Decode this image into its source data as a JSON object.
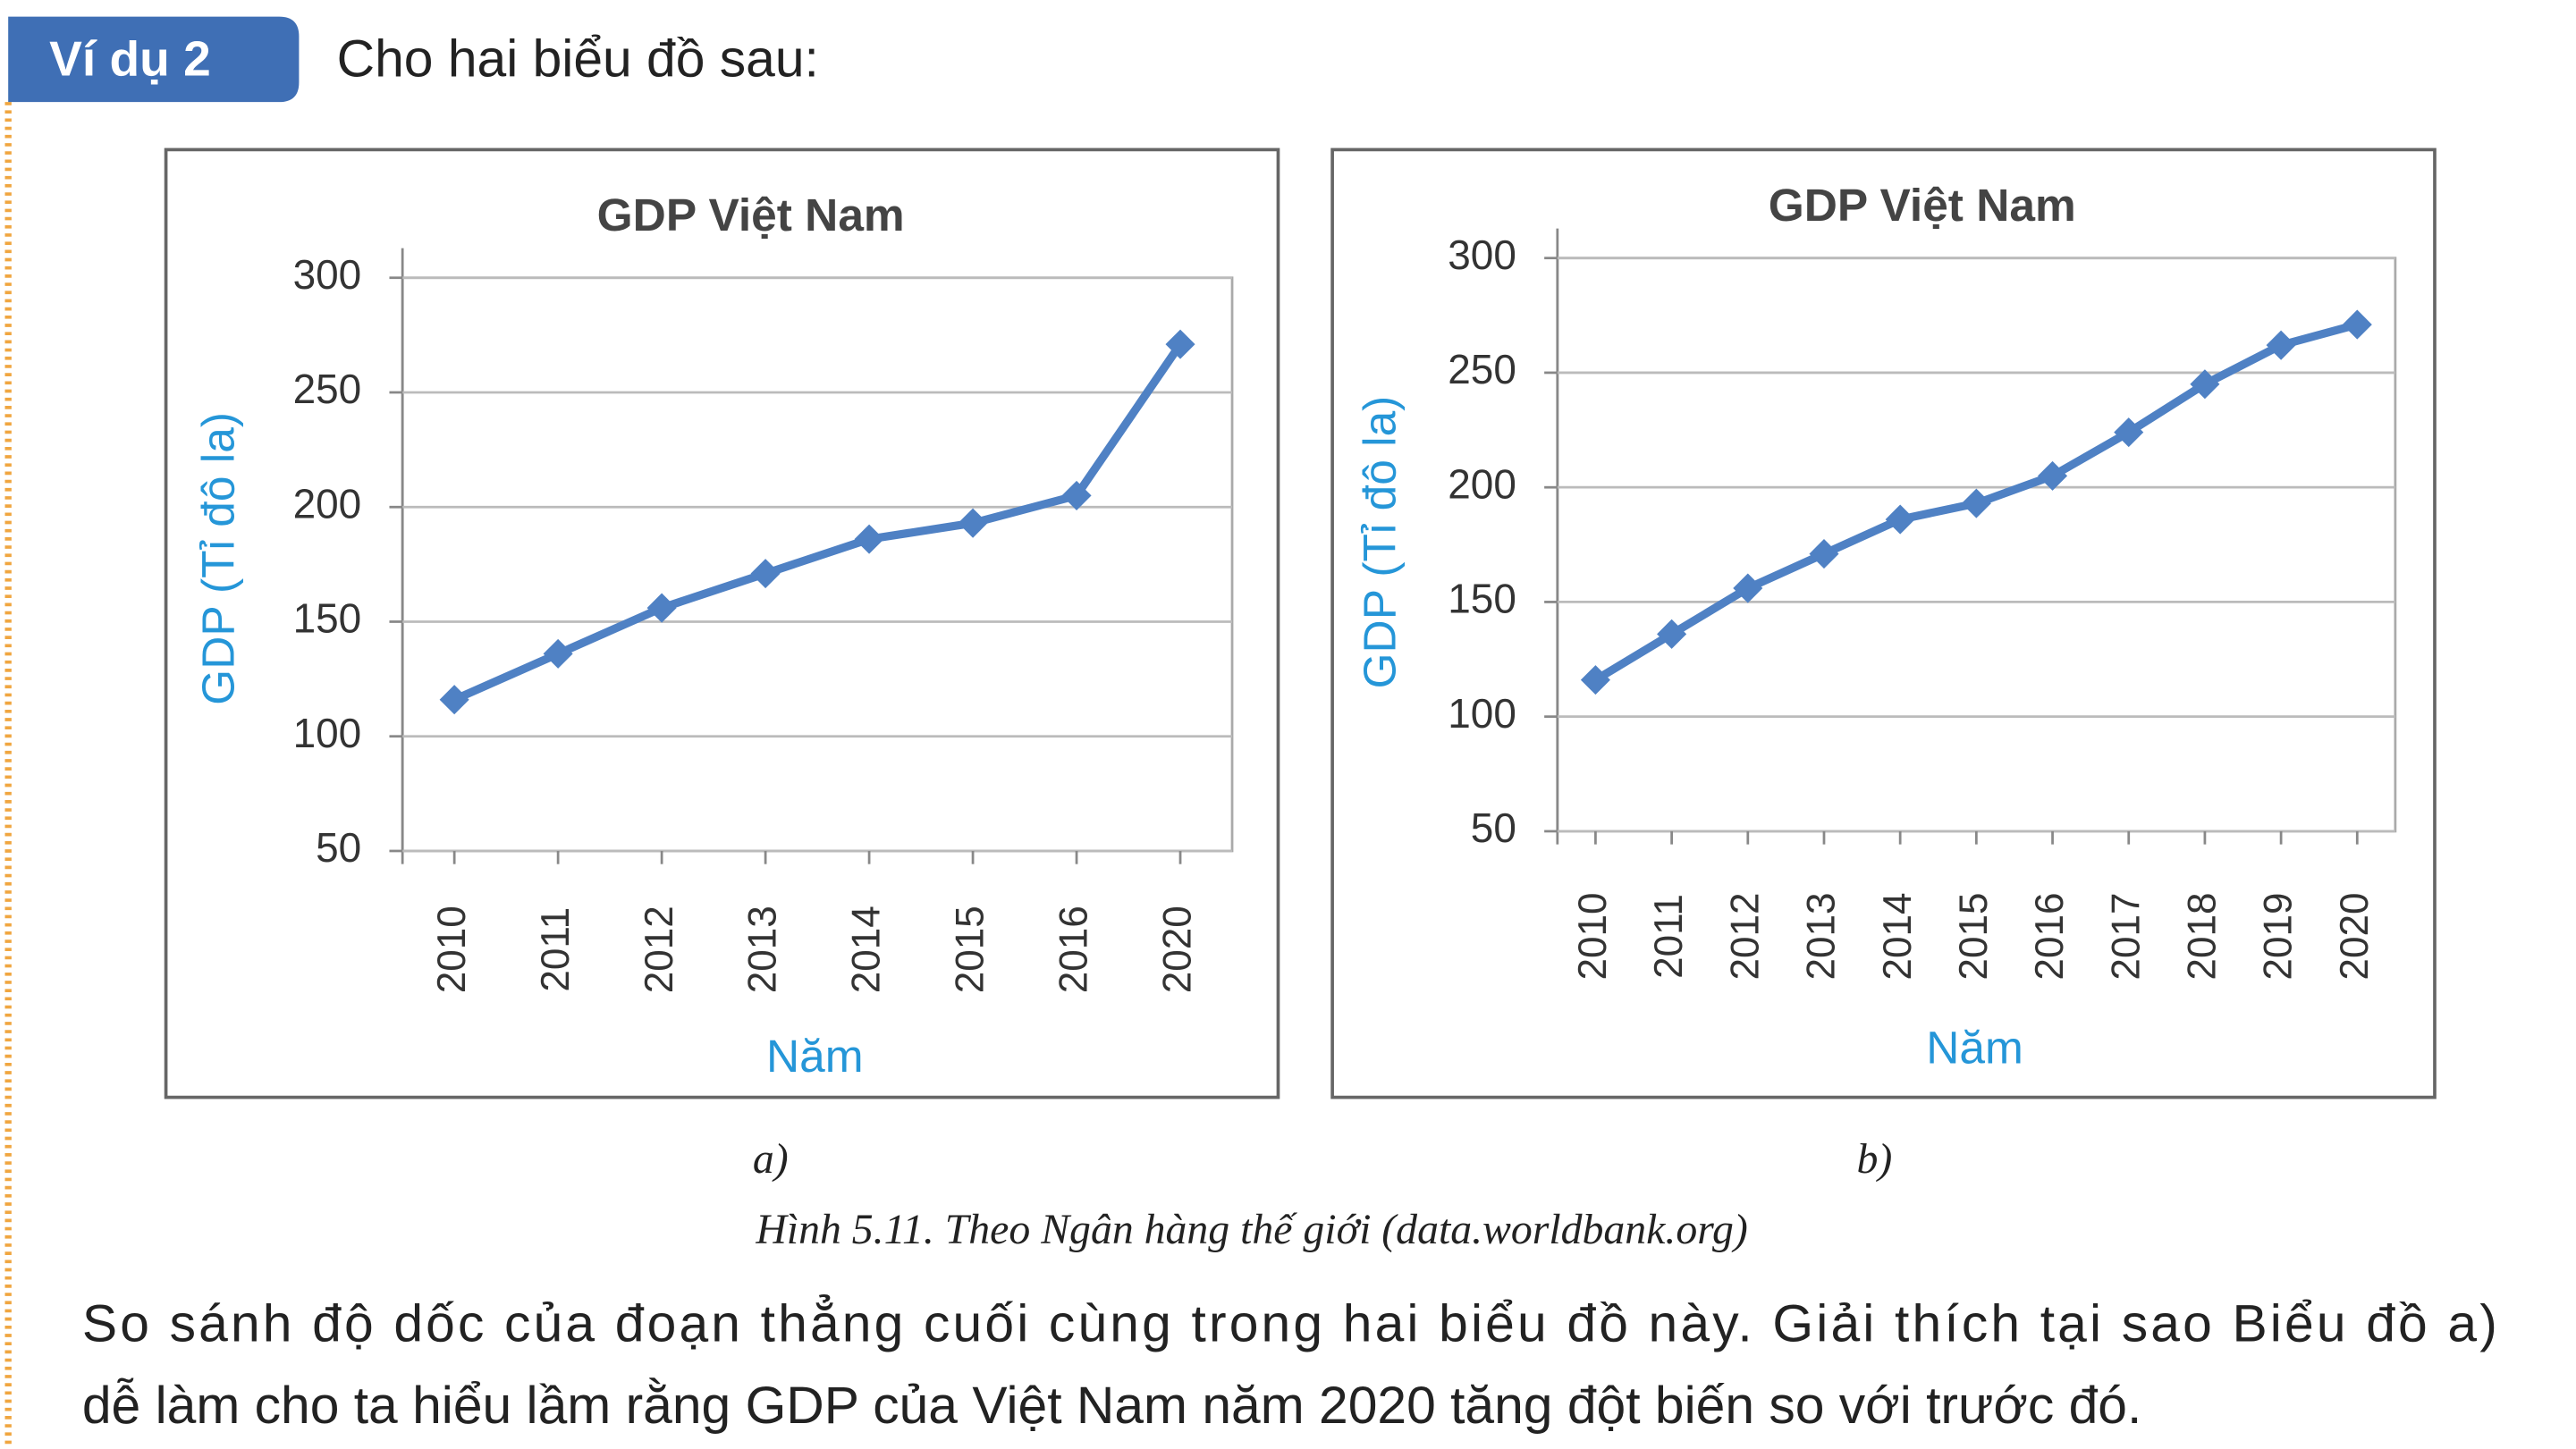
{
  "badge": "Ví dụ 2",
  "intro": "Cho hai biểu đồ sau:",
  "chart_data": [
    {
      "type": "line",
      "title": "GDP Việt Nam",
      "y_label": "GDP (Tỉ đô la)",
      "x_label": "Năm",
      "categories": [
        "2010",
        "2011",
        "2012",
        "2013",
        "2014",
        "2015",
        "2016",
        "2020"
      ],
      "series": [
        {
          "name": "GDP",
          "color": "#4f81c4",
          "values": [
            116,
            136,
            156,
            171,
            186,
            193,
            205,
            271
          ]
        }
      ],
      "ylim": [
        50,
        300
      ],
      "yticks": [
        50,
        100,
        150,
        200,
        250,
        300
      ],
      "grid": true
    },
    {
      "type": "line",
      "title": "GDP Việt Nam",
      "y_label": "GDP (Tỉ đô la)",
      "x_label": "Năm",
      "categories": [
        "2010",
        "2011",
        "2012",
        "2013",
        "2014",
        "2015",
        "2016",
        "2017",
        "2018",
        "2019",
        "2020"
      ],
      "series": [
        {
          "name": "GDP",
          "color": "#4f81c4",
          "values": [
            116,
            136,
            156,
            171,
            186,
            193,
            205,
            224,
            245,
            262,
            271
          ]
        }
      ],
      "ylim": [
        50,
        300
      ],
      "yticks": [
        50,
        100,
        150,
        200,
        250,
        300
      ],
      "grid": true
    }
  ],
  "sublabels": [
    "a)",
    "b)"
  ],
  "caption": "Hình 5.11. Theo Ngân hàng thế giới (data.worldbank.org)",
  "paragraph": [
    "So sánh độ dốc của đoạn thẳng cuối cùng trong hai biểu đồ này. Giải thích tại sao Biểu đồ a)",
    "dễ làm cho ta hiểu lầm rằng GDP của Việt Nam năm 2020 tăng đột biến so với trước đó."
  ]
}
